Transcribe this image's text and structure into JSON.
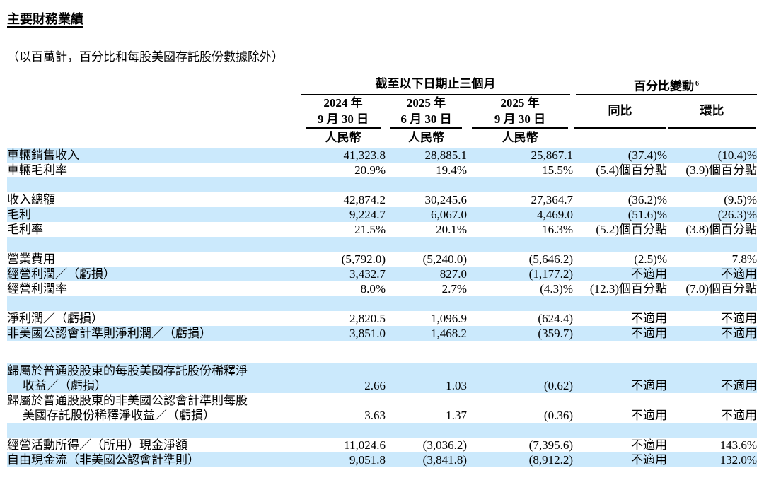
{
  "title": "主要財務業績",
  "subtitle": "（以百萬計，百分比和每股美國存託股份數據除外）",
  "colors": {
    "row_highlight": "#cbe9fc",
    "rule": "#000000"
  },
  "table": {
    "period_group": "截至以下日期止三個月",
    "change_group": "百分比變動",
    "change_group_sup": "6",
    "currency_label": "人民幣",
    "columns": [
      {
        "line1": "2024 年",
        "line2": "9 月 30 日"
      },
      {
        "line1": "2025 年",
        "line2": "6 月 30 日"
      },
      {
        "line1": "2025 年",
        "line2": "9 月 30 日"
      }
    ],
    "yoy_label": "同比",
    "qoq_label": "環比",
    "not_applicable": "不適用",
    "rows": [
      {
        "lines": [
          "車輛銷售收入"
        ],
        "values": [
          "41,323.8",
          "28,885.1",
          "25,867.1",
          "(37.4)%",
          "(10.4)%"
        ],
        "shaded": true
      },
      {
        "lines": [
          "車輛毛利率"
        ],
        "values": [
          "20.9%",
          "19.4%",
          "15.5%",
          "(5.4)個百分點",
          "(3.9)個百分點"
        ],
        "shaded": false
      },
      {
        "spacer": true,
        "shaded": true
      },
      {
        "lines": [
          "收入總額"
        ],
        "values": [
          "42,874.2",
          "30,245.6",
          "27,364.7",
          "(36.2)%",
          "(9.5)%"
        ],
        "shaded": false
      },
      {
        "lines": [
          "毛利"
        ],
        "values": [
          "9,224.7",
          "6,067.0",
          "4,469.0",
          "(51.6)%",
          "(26.3)%"
        ],
        "shaded": true
      },
      {
        "lines": [
          "毛利率"
        ],
        "values": [
          "21.5%",
          "20.1%",
          "16.3%",
          "(5.2)個百分點",
          "(3.8)個百分點"
        ],
        "shaded": false
      },
      {
        "spacer": true,
        "shaded": true
      },
      {
        "lines": [
          "營業費用"
        ],
        "values": [
          "(5,792.0)",
          "(5,240.0)",
          "(5,646.2)",
          "(2.5)%",
          "7.8%"
        ],
        "shaded": false
      },
      {
        "lines": [
          "經營利潤／（虧損）"
        ],
        "values": [
          "3,432.7",
          "827.0",
          "(1,177.2)",
          "不適用",
          "不適用"
        ],
        "shaded": true
      },
      {
        "lines": [
          "經營利潤率"
        ],
        "values": [
          "8.0%",
          "2.7%",
          "(4.3)%",
          "(12.3)個百分點",
          "(7.0)個百分點"
        ],
        "shaded": false
      },
      {
        "spacer": true,
        "shaded": true
      },
      {
        "lines": [
          "淨利潤／（虧損）"
        ],
        "values": [
          "2,820.5",
          "1,096.9",
          "(624.4)",
          "不適用",
          "不適用"
        ],
        "shaded": false
      },
      {
        "lines": [
          "非美國公認會計準則淨利潤／（虧損）"
        ],
        "values": [
          "3,851.0",
          "1,468.2",
          "(359.7)",
          "不適用",
          "不適用"
        ],
        "shaded": true
      },
      {
        "spacer": true,
        "shaded": false,
        "tall": true
      },
      {
        "lines": [
          "歸屬於普通股股東的每股美國存託股份稀釋淨",
          "收益／（虧損）"
        ],
        "values": [
          "2.66",
          "1.03",
          "(0.62)",
          "不適用",
          "不適用"
        ],
        "shaded": true
      },
      {
        "lines": [
          "歸屬於普通股股東的非美國公認會計準則每股",
          "美國存託股份稀釋淨收益／（虧損）"
        ],
        "values": [
          "3.63",
          "1.37",
          "(0.36)",
          "不適用",
          "不適用"
        ],
        "shaded": false
      },
      {
        "spacer": true,
        "shaded": true
      },
      {
        "lines": [
          "經營活動所得／（所用）現金淨額"
        ],
        "values": [
          "11,024.6",
          "(3,036.2)",
          "(7,395.6)",
          "不適用",
          "143.6%"
        ],
        "shaded": false
      },
      {
        "lines": [
          "自由現金流（非美國公認會計準則）"
        ],
        "values": [
          "9,051.8",
          "(3,841.8)",
          "(8,912.2)",
          "不適用",
          "132.0%"
        ],
        "shaded": true
      }
    ]
  }
}
